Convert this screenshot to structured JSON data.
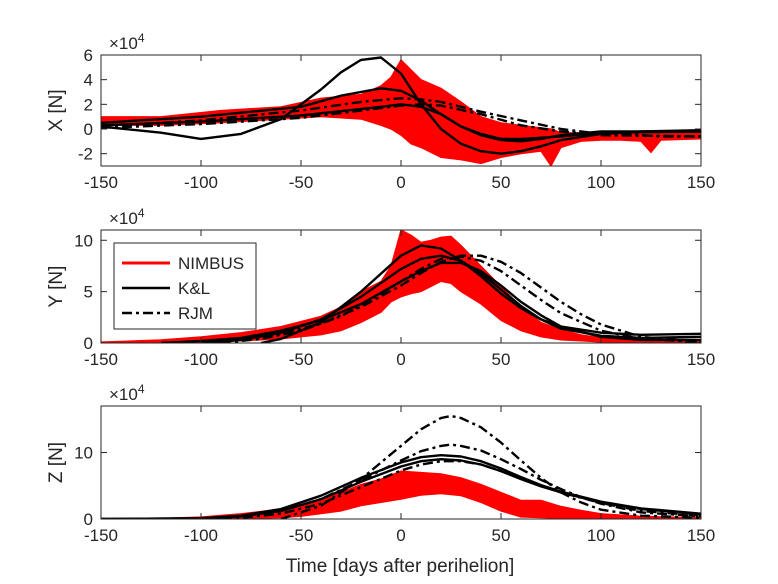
{
  "figure": {
    "xlabel": "Time [days after perihelion]",
    "legend": {
      "location": "upper-left of panel 2",
      "entries": [
        "NIMBUS",
        "K&L",
        "RJM"
      ]
    },
    "colors": {
      "NIMBUS": "#ff0000",
      "K&L": "#000000",
      "RJM": "#000000",
      "axes": "#262626"
    }
  },
  "chart_data": [
    {
      "type": "line",
      "ylabel": "X [N]",
      "y_exponent_label": "×10",
      "y_exponent_power": "4",
      "xlim": [
        -150,
        150
      ],
      "ylim": [
        -3,
        6
      ],
      "x_ticks": [
        -150,
        -100,
        -50,
        0,
        50,
        100,
        150
      ],
      "y_ticks": [
        -2,
        0,
        2,
        4,
        6
      ],
      "y_unit_scale": 10000,
      "series": [
        {
          "name": "NIMBUS",
          "style": "band",
          "color": "#ff0000",
          "x": [
            -150,
            -120,
            -90,
            -60,
            -40,
            -20,
            -10,
            -5,
            0,
            5,
            10,
            20,
            30,
            40,
            50,
            60,
            70,
            75,
            80,
            90,
            100,
            110,
            120,
            125,
            130,
            150
          ],
          "upper": [
            1.0,
            1.0,
            1.5,
            1.8,
            2.5,
            2.8,
            3.5,
            4.2,
            5.6,
            4.8,
            4.0,
            3.3,
            2.2,
            1.0,
            0.5,
            0.3,
            0.1,
            0.0,
            -0.3,
            -0.3,
            -0.2,
            -0.2,
            -0.2,
            -0.4,
            -0.3,
            -0.2
          ],
          "lower": [
            0.3,
            0.3,
            0.5,
            0.8,
            1.0,
            0.8,
            0.3,
            0.0,
            -0.5,
            -1.2,
            -1.5,
            -2.3,
            -2.5,
            -2.8,
            -2.3,
            -2.0,
            -1.8,
            -3.0,
            -1.5,
            -1.0,
            -0.9,
            -0.9,
            -1.0,
            -1.9,
            -0.9,
            -0.8
          ]
        },
        {
          "name": "K&L",
          "style": "solid",
          "color": "#000000",
          "x": [
            -150,
            -120,
            -100,
            -80,
            -60,
            -40,
            -30,
            -20,
            -10,
            0,
            10,
            20,
            30,
            40,
            50,
            60,
            70,
            80,
            100,
            120,
            150
          ],
          "y": [
            0.2,
            -0.3,
            -0.8,
            -0.4,
            0.8,
            3.2,
            4.6,
            5.6,
            5.8,
            4.5,
            2.0,
            0.0,
            -1.2,
            -1.8,
            -2.0,
            -1.8,
            -1.4,
            -0.9,
            -0.4,
            -0.2,
            -0.1
          ]
        },
        {
          "name": "K&L",
          "style": "solid",
          "color": "#000000",
          "x": [
            -150,
            -100,
            -50,
            -30,
            -10,
            0,
            10,
            20,
            30,
            40,
            50,
            60,
            70,
            80,
            100,
            150
          ],
          "y": [
            0.5,
            1.0,
            1.8,
            2.7,
            3.3,
            3.1,
            2.3,
            1.2,
            0.2,
            -0.5,
            -0.9,
            -1.0,
            -0.8,
            -0.5,
            -0.2,
            -0.2
          ]
        },
        {
          "name": "K&L",
          "style": "solid",
          "color": "#000000",
          "x": [
            -150,
            -100,
            -50,
            -10,
            0,
            10,
            20,
            30,
            40,
            50,
            60,
            80,
            100,
            150
          ],
          "y": [
            0.3,
            0.6,
            1.1,
            1.8,
            2.0,
            1.8,
            1.2,
            0.2,
            -0.4,
            -0.8,
            -0.8,
            -0.6,
            -0.3,
            -0.2
          ]
        },
        {
          "name": "RJM",
          "style": "dashdot",
          "color": "#000000",
          "x": [
            -150,
            -100,
            -50,
            -20,
            0,
            10,
            20,
            40,
            60,
            80,
            95,
            110,
            130,
            150
          ],
          "y": [
            0.2,
            0.7,
            1.5,
            2.2,
            2.5,
            2.4,
            2.2,
            1.4,
            0.7,
            0.0,
            -0.3,
            -0.4,
            -0.6,
            -0.6
          ]
        },
        {
          "name": "RJM",
          "style": "dashdot",
          "color": "#000000",
          "x": [
            -150,
            -100,
            -50,
            -20,
            0,
            10,
            20,
            40,
            60,
            80,
            100,
            150
          ],
          "y": [
            0.1,
            0.4,
            0.9,
            1.5,
            1.9,
            2.0,
            1.9,
            1.2,
            0.3,
            -0.2,
            -0.5,
            -0.6
          ]
        }
      ]
    },
    {
      "type": "line",
      "ylabel": "Y [N]",
      "y_exponent_label": "×10",
      "y_exponent_power": "4",
      "xlim": [
        -150,
        150
      ],
      "ylim": [
        0,
        11
      ],
      "x_ticks": [
        -150,
        -100,
        -50,
        0,
        50,
        100,
        150
      ],
      "y_ticks": [
        0,
        5,
        10
      ],
      "y_unit_scale": 10000,
      "series": [
        {
          "name": "NIMBUS",
          "style": "band",
          "color": "#ff0000",
          "x": [
            -150,
            -120,
            -100,
            -80,
            -60,
            -50,
            -40,
            -30,
            -20,
            -10,
            -5,
            0,
            5,
            10,
            15,
            20,
            25,
            30,
            40,
            50,
            60,
            70,
            80,
            90,
            100,
            120,
            150
          ],
          "upper": [
            0.1,
            0.3,
            0.6,
            1.0,
            1.6,
            2.1,
            2.6,
            3.5,
            5.0,
            6.0,
            7.5,
            11.0,
            10.5,
            9.8,
            10.0,
            10.3,
            10.4,
            9.5,
            7.5,
            5.5,
            3.5,
            2.0,
            1.3,
            0.8,
            0.5,
            0.3,
            0.2
          ],
          "lower": [
            0.0,
            0.0,
            0.1,
            0.2,
            0.4,
            0.6,
            0.8,
            1.2,
            2.0,
            3.0,
            4.0,
            4.5,
            4.8,
            5.0,
            5.5,
            6.0,
            5.8,
            5.0,
            3.8,
            2.2,
            1.2,
            0.6,
            0.3,
            0.2,
            0.1,
            0.0,
            0.0
          ]
        },
        {
          "name": "K&L",
          "style": "solid",
          "color": "#000000",
          "x": [
            -70,
            -60,
            -40,
            -20,
            0,
            10,
            20,
            30,
            40,
            50,
            60,
            70,
            80,
            100,
            120,
            150
          ],
          "y": [
            0.0,
            0.4,
            2.0,
            5.0,
            8.5,
            9.5,
            9.2,
            8.0,
            6.5,
            4.8,
            3.4,
            2.3,
            1.6,
            1.0,
            0.8,
            0.9
          ]
        },
        {
          "name": "K&L",
          "style": "solid",
          "color": "#000000",
          "x": [
            -100,
            -80,
            -60,
            -40,
            -20,
            0,
            10,
            20,
            30,
            40,
            50,
            60,
            70,
            80,
            100,
            120,
            150
          ],
          "y": [
            0.0,
            0.3,
            1.0,
            2.3,
            4.5,
            7.2,
            8.2,
            8.5,
            8.0,
            6.8,
            5.2,
            3.6,
            2.3,
            1.4,
            0.7,
            0.5,
            0.6
          ]
        },
        {
          "name": "K&L",
          "style": "solid",
          "color": "#000000",
          "x": [
            -120,
            -100,
            -80,
            -60,
            -40,
            -20,
            0,
            10,
            20,
            30,
            40,
            50,
            60,
            70,
            80,
            100,
            120,
            150
          ],
          "y": [
            0.0,
            0.2,
            0.5,
            1.2,
            2.2,
            3.8,
            6.0,
            7.0,
            7.8,
            7.8,
            7.0,
            5.6,
            4.0,
            2.7,
            1.6,
            0.6,
            0.3,
            0.3
          ]
        },
        {
          "name": "RJM",
          "style": "dashdot",
          "color": "#000000",
          "x": [
            -90,
            -70,
            -50,
            -30,
            -10,
            0,
            10,
            20,
            30,
            40,
            50,
            60,
            70,
            80,
            100,
            120,
            150
          ],
          "y": [
            0.0,
            0.4,
            1.2,
            2.6,
            4.8,
            6.0,
            7.2,
            8.2,
            8.4,
            8.0,
            7.0,
            5.6,
            4.2,
            2.9,
            1.2,
            0.4,
            0.1
          ]
        },
        {
          "name": "RJM",
          "style": "dashdot",
          "color": "#000000",
          "x": [
            -100,
            -80,
            -60,
            -40,
            -20,
            0,
            10,
            20,
            30,
            40,
            50,
            60,
            70,
            80,
            90,
            100,
            120,
            150
          ],
          "y": [
            0.0,
            0.3,
            0.9,
            1.9,
            3.5,
            5.6,
            6.8,
            7.9,
            8.5,
            8.5,
            7.9,
            6.8,
            5.4,
            4.0,
            2.8,
            1.8,
            0.6,
            0.1
          ]
        }
      ]
    },
    {
      "type": "line",
      "ylabel": "Z [N]",
      "y_exponent_label": "×10",
      "y_exponent_power": "4",
      "xlim": [
        -150,
        150
      ],
      "ylim": [
        0,
        17
      ],
      "x_ticks": [
        -150,
        -100,
        -50,
        0,
        50,
        100,
        150
      ],
      "y_ticks": [
        0,
        10
      ],
      "y_unit_scale": 10000,
      "series": [
        {
          "name": "NIMBUS",
          "style": "band",
          "color": "#ff0000",
          "x": [
            -150,
            -120,
            -100,
            -80,
            -60,
            -50,
            -40,
            -30,
            -20,
            -10,
            0,
            10,
            20,
            30,
            40,
            50,
            60,
            70,
            80,
            90,
            100,
            120,
            150
          ],
          "upper": [
            0.0,
            0.1,
            0.3,
            0.8,
            1.5,
            2.2,
            3.0,
            4.0,
            5.2,
            6.0,
            7.2,
            7.0,
            6.8,
            6.2,
            5.2,
            4.0,
            2.8,
            2.8,
            1.9,
            1.3,
            0.8,
            0.4,
            0.2
          ],
          "lower": [
            0.0,
            0.0,
            0.0,
            0.1,
            0.2,
            0.4,
            0.8,
            1.2,
            2.0,
            2.5,
            3.0,
            3.6,
            3.8,
            3.5,
            2.5,
            1.2,
            0.3,
            0.2,
            0.1,
            0.0,
            0.0,
            0.0,
            0.0
          ]
        },
        {
          "name": "K&L",
          "style": "solid",
          "color": "#000000",
          "x": [
            -150,
            -100,
            -80,
            -60,
            -40,
            -20,
            0,
            10,
            20,
            30,
            40,
            50,
            60,
            70,
            80,
            100,
            120,
            150
          ],
          "y": [
            0.0,
            0.1,
            0.5,
            1.5,
            3.5,
            6.2,
            8.5,
            9.3,
            9.6,
            9.4,
            8.7,
            7.6,
            6.3,
            5.1,
            4.1,
            2.6,
            1.6,
            0.8
          ]
        },
        {
          "name": "K&L",
          "style": "solid",
          "color": "#000000",
          "x": [
            -150,
            -100,
            -80,
            -60,
            -40,
            -20,
            0,
            10,
            20,
            30,
            40,
            50,
            60,
            70,
            80,
            100,
            120,
            150
          ],
          "y": [
            0.0,
            0.1,
            0.4,
            1.2,
            3.0,
            5.6,
            7.9,
            8.7,
            9.0,
            8.8,
            8.2,
            7.2,
            6.0,
            4.9,
            4.0,
            2.5,
            1.5,
            0.7
          ]
        },
        {
          "name": "RJM",
          "style": "dashdot",
          "color": "#000000",
          "x": [
            -60,
            -40,
            -20,
            0,
            10,
            20,
            25,
            30,
            40,
            50,
            60,
            70,
            80,
            90,
            100,
            120,
            150
          ],
          "y": [
            0.0,
            2.0,
            6.0,
            11.0,
            13.5,
            15.2,
            15.5,
            15.2,
            13.8,
            11.5,
            8.8,
            6.2,
            4.0,
            2.5,
            1.4,
            0.5,
            0.2
          ]
        },
        {
          "name": "RJM",
          "style": "dashdot",
          "color": "#000000",
          "x": [
            -100,
            -80,
            -60,
            -40,
            -20,
            0,
            10,
            20,
            25,
            30,
            40,
            50,
            60,
            70,
            80,
            90,
            100,
            120,
            150
          ],
          "y": [
            0.0,
            0.3,
            1.2,
            3.0,
            5.8,
            8.8,
            10.2,
            11.0,
            11.2,
            11.0,
            10.3,
            9.0,
            7.5,
            5.9,
            4.5,
            3.3,
            2.3,
            1.0,
            0.4
          ]
        },
        {
          "name": "RJM",
          "style": "dashdot",
          "color": "#000000",
          "x": [
            -100,
            -80,
            -60,
            -40,
            -20,
            0,
            10,
            20,
            30,
            40,
            50,
            60,
            70,
            80,
            90,
            100,
            120,
            150
          ],
          "y": [
            0.0,
            0.2,
            0.8,
            2.3,
            4.8,
            7.3,
            8.2,
            8.7,
            8.7,
            8.2,
            7.2,
            6.1,
            5.0,
            4.0,
            3.2,
            2.4,
            1.2,
            0.5
          ]
        }
      ]
    }
  ]
}
